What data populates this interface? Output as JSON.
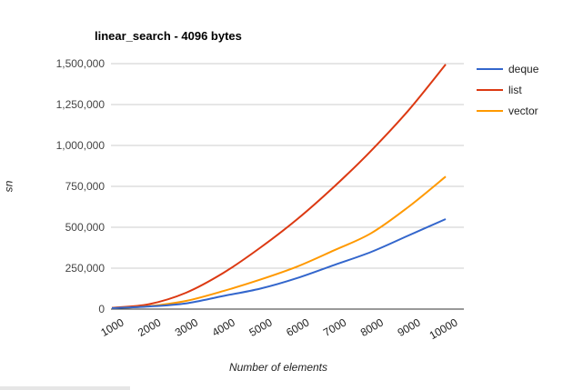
{
  "chart_data": {
    "type": "line",
    "title": "linear_search - 4096 bytes",
    "xlabel": "Number of elements",
    "ylabel": "us",
    "ylim": [
      0,
      1500000
    ],
    "yticks": [
      0,
      250000,
      500000,
      750000,
      1000000,
      1250000,
      1500000
    ],
    "ytick_labels": [
      "0",
      "250,000",
      "500,000",
      "750,000",
      "1,000,000",
      "1,250,000",
      "1,500,000"
    ],
    "categories": [
      "1000",
      "2000",
      "3000",
      "4000",
      "5000",
      "6000",
      "7000",
      "8000",
      "9000",
      "10000"
    ],
    "grid": true,
    "legend_position": "right",
    "series": [
      {
        "name": "deque",
        "color": "#3366cc",
        "values": [
          6000,
          16000,
          35000,
          80000,
          125000,
          190000,
          270000,
          350000,
          450000,
          550000
        ]
      },
      {
        "name": "list",
        "color": "#dc3912",
        "values": [
          8000,
          30000,
          100000,
          220000,
          375000,
          550000,
          750000,
          970000,
          1215000,
          1495000
        ]
      },
      {
        "name": "vector",
        "color": "#ff9900",
        "values": [
          6000,
          18000,
          50000,
          110000,
          180000,
          260000,
          360000,
          465000,
          625000,
          810000
        ]
      }
    ]
  }
}
